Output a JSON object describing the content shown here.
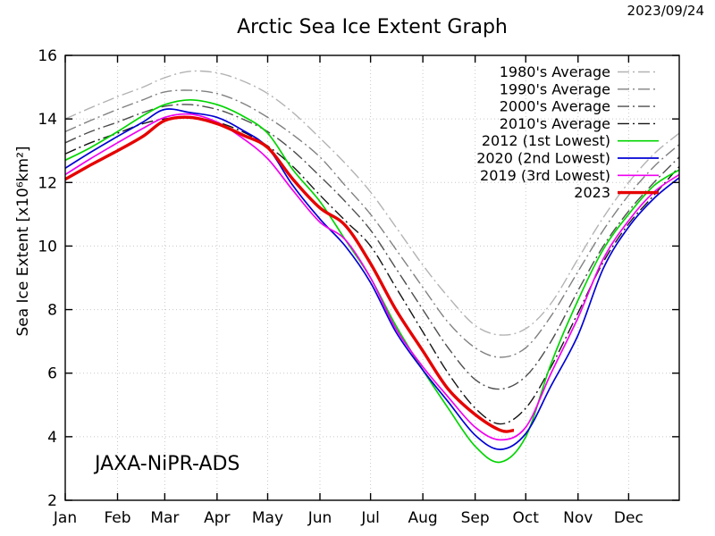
{
  "header": {
    "title": "Arctic Sea Ice Extent Graph",
    "date_annotation": "2023/09/24"
  },
  "watermark": "JAXA-NiPR-ADS",
  "colors": {
    "background": "#ffffff",
    "axis": "#000000",
    "grid": "#c8c8c8",
    "avg_1980s": "#b3b3b3",
    "avg_1990s": "#808080",
    "avg_2000s": "#4d4d4d",
    "avg_2010s": "#141414",
    "year_2012": "#00d500",
    "year_2020": "#0000d5",
    "year_2019": "#f000f0",
    "year_2023": "#e60000"
  },
  "chart_data": {
    "type": "line",
    "title": "Arctic Sea Ice Extent Graph",
    "xlabel": "",
    "ylabel": "Sea Ice Extent [x10⁶km²]",
    "ylim": [
      2,
      16
    ],
    "y_ticks": [
      2,
      4,
      6,
      8,
      10,
      12,
      14,
      16
    ],
    "x_unit": "day_of_year",
    "xlim": [
      1,
      365
    ],
    "month_labels": [
      "Jan",
      "Feb",
      "Mar",
      "Apr",
      "May",
      "Jun",
      "Jul",
      "Aug",
      "Sep",
      "Oct",
      "Nov",
      "Dec"
    ],
    "month_start_days": [
      1,
      32,
      60,
      91,
      121,
      152,
      182,
      213,
      244,
      274,
      305,
      335
    ],
    "grid": true,
    "legend_position": "top-right",
    "series": [
      {
        "name": "1980's Average",
        "color": "#b3b3b3",
        "style": "dashdot",
        "width": 1.4,
        "days": [
          1,
          16,
          32,
          47,
          60,
          75,
          91,
          106,
          121,
          136,
          152,
          167,
          182,
          197,
          213,
          228,
          244,
          259,
          274,
          289,
          305,
          320,
          335,
          350,
          365
        ],
        "values": [
          14.0,
          14.35,
          14.7,
          15.0,
          15.3,
          15.5,
          15.45,
          15.2,
          14.8,
          14.2,
          13.4,
          12.6,
          11.7,
          10.6,
          9.4,
          8.4,
          7.5,
          7.2,
          7.4,
          8.2,
          9.6,
          10.9,
          12.0,
          12.9,
          13.55
        ]
      },
      {
        "name": "1990's Average",
        "color": "#808080",
        "style": "dashdot",
        "width": 1.4,
        "days": [
          1,
          16,
          32,
          47,
          60,
          75,
          91,
          106,
          121,
          136,
          152,
          167,
          182,
          197,
          213,
          228,
          244,
          259,
          274,
          289,
          305,
          320,
          335,
          350,
          365
        ],
        "values": [
          13.6,
          13.95,
          14.3,
          14.6,
          14.85,
          14.9,
          14.8,
          14.5,
          14.05,
          13.5,
          12.8,
          11.9,
          11.0,
          9.9,
          8.7,
          7.6,
          6.8,
          6.5,
          6.8,
          7.8,
          9.2,
          10.5,
          11.6,
          12.5,
          13.2
        ]
      },
      {
        "name": "2000's Average",
        "color": "#4d4d4d",
        "style": "dashdot",
        "width": 1.4,
        "days": [
          1,
          16,
          32,
          47,
          60,
          75,
          91,
          106,
          121,
          136,
          152,
          167,
          182,
          197,
          213,
          228,
          244,
          259,
          274,
          289,
          305,
          320,
          335,
          350,
          365
        ],
        "values": [
          13.25,
          13.6,
          13.9,
          14.2,
          14.4,
          14.45,
          14.3,
          14.0,
          13.6,
          13.0,
          12.2,
          11.4,
          10.5,
          9.3,
          8.0,
          6.8,
          5.8,
          5.5,
          5.9,
          7.0,
          8.6,
          10.0,
          11.1,
          12.0,
          12.8
        ]
      },
      {
        "name": "2010's Average",
        "color": "#141414",
        "style": "dashdot",
        "width": 1.4,
        "days": [
          1,
          16,
          32,
          47,
          60,
          75,
          91,
          106,
          121,
          136,
          152,
          167,
          182,
          197,
          213,
          228,
          244,
          259,
          274,
          289,
          305,
          320,
          335,
          350,
          365
        ],
        "values": [
          12.9,
          13.25,
          13.55,
          13.85,
          14.0,
          14.05,
          13.9,
          13.6,
          13.15,
          12.5,
          11.6,
          10.8,
          10.0,
          8.7,
          7.3,
          6.0,
          4.9,
          4.4,
          4.9,
          6.2,
          7.9,
          9.5,
          10.7,
          11.6,
          12.5
        ]
      },
      {
        "name": "2012 (1st Lowest)",
        "color": "#00d500",
        "style": "solid",
        "width": 1.7,
        "days": [
          1,
          16,
          32,
          47,
          60,
          75,
          91,
          106,
          121,
          136,
          152,
          167,
          182,
          197,
          213,
          228,
          244,
          259,
          274,
          289,
          305,
          320,
          335,
          350,
          365
        ],
        "values": [
          12.7,
          13.1,
          13.6,
          14.1,
          14.45,
          14.6,
          14.45,
          14.1,
          13.55,
          12.4,
          11.4,
          10.2,
          9.0,
          7.5,
          6.1,
          4.9,
          3.7,
          3.2,
          4.0,
          6.3,
          8.3,
          9.9,
          11.0,
          11.9,
          12.4
        ]
      },
      {
        "name": "2020 (2nd Lowest)",
        "color": "#0000d5",
        "style": "solid",
        "width": 1.7,
        "days": [
          1,
          16,
          32,
          47,
          60,
          75,
          91,
          106,
          121,
          136,
          152,
          167,
          182,
          197,
          213,
          228,
          244,
          259,
          274,
          289,
          305,
          320,
          335,
          350,
          365
        ],
        "values": [
          12.45,
          12.95,
          13.45,
          13.9,
          14.3,
          14.2,
          14.05,
          13.65,
          13.1,
          11.9,
          10.85,
          10.0,
          8.85,
          7.3,
          6.1,
          5.1,
          4.05,
          3.6,
          4.1,
          5.6,
          7.2,
          9.3,
          10.6,
          11.5,
          12.15
        ]
      },
      {
        "name": "2019 (3rd Lowest)",
        "color": "#f000f0",
        "style": "solid",
        "width": 1.7,
        "days": [
          1,
          16,
          32,
          47,
          60,
          75,
          91,
          106,
          121,
          136,
          152,
          167,
          182,
          197,
          213,
          228,
          244,
          259,
          274,
          289,
          305,
          320,
          335,
          350,
          365
        ],
        "values": [
          12.25,
          12.75,
          13.25,
          13.7,
          14.05,
          14.15,
          13.9,
          13.4,
          12.75,
          11.75,
          10.75,
          10.2,
          9.0,
          7.4,
          6.2,
          5.25,
          4.3,
          3.9,
          4.3,
          6.0,
          7.75,
          9.6,
          10.8,
          11.7,
          12.25
        ]
      },
      {
        "name": "2023",
        "color": "#e60000",
        "style": "solid",
        "width": 3.4,
        "days": [
          1,
          16,
          32,
          47,
          60,
          75,
          91,
          106,
          121,
          136,
          152,
          167,
          182,
          197,
          213,
          228,
          244,
          259,
          267
        ],
        "values": [
          12.1,
          12.55,
          13.0,
          13.45,
          13.95,
          14.05,
          13.85,
          13.5,
          13.1,
          12.1,
          11.2,
          10.65,
          9.45,
          8.0,
          6.7,
          5.5,
          4.7,
          4.2,
          4.2
        ]
      }
    ]
  }
}
